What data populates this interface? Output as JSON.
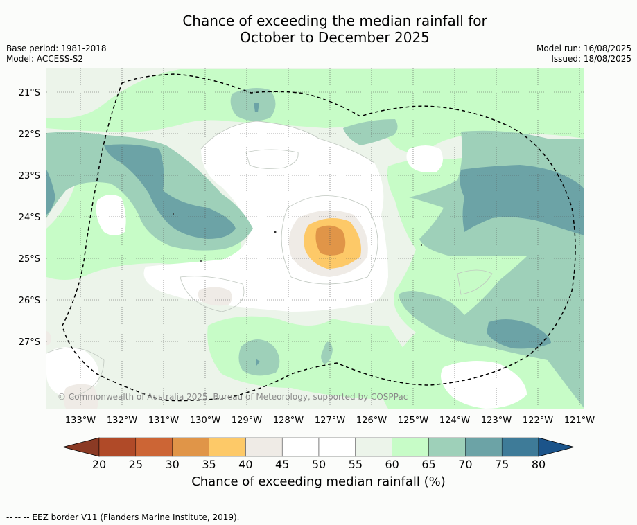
{
  "title": {
    "line1": "Chance of exceeding the median rainfall for",
    "line2": "October to December 2025"
  },
  "meta": {
    "base_period": "Base period: 1981-2018",
    "model": "Model: ACCESS-S2",
    "model_run": "Model run: 16/08/2025",
    "issued": "Issued: 18/08/2025"
  },
  "map": {
    "copyright": "© Commonwealth of Australia 2025, Bureau of Meteorology, supported by COSPPac",
    "lat_labels": [
      "21°S",
      "22°S",
      "23°S",
      "24°S",
      "25°S",
      "26°S",
      "27°S"
    ],
    "lon_labels": [
      "133°W",
      "132°W",
      "131°W",
      "130°W",
      "129°W",
      "128°W",
      "127°W",
      "126°W",
      "125°W",
      "124°W",
      "123°W",
      "122°W",
      "121°W"
    ]
  },
  "colorbar": {
    "ticks": [
      "20",
      "25",
      "30",
      "35",
      "40",
      "45",
      "50",
      "55",
      "60",
      "65",
      "70",
      "75",
      "80"
    ],
    "label": "Chance of exceeding median rainfall (%)",
    "colors": [
      "#8b3a24",
      "#b04a28",
      "#cc6535",
      "#e09548",
      "#fdc968",
      "#efebe6",
      "#ffffff",
      "#ffffff",
      "#ecf4ea",
      "#c7fcc7",
      "#9ed0b9",
      "#6ca3a6",
      "#3e7b98",
      "#1b548a"
    ]
  },
  "footnote": "--  --  -- EEZ border V11 (Flanders Marine Institute, 2019)."
}
